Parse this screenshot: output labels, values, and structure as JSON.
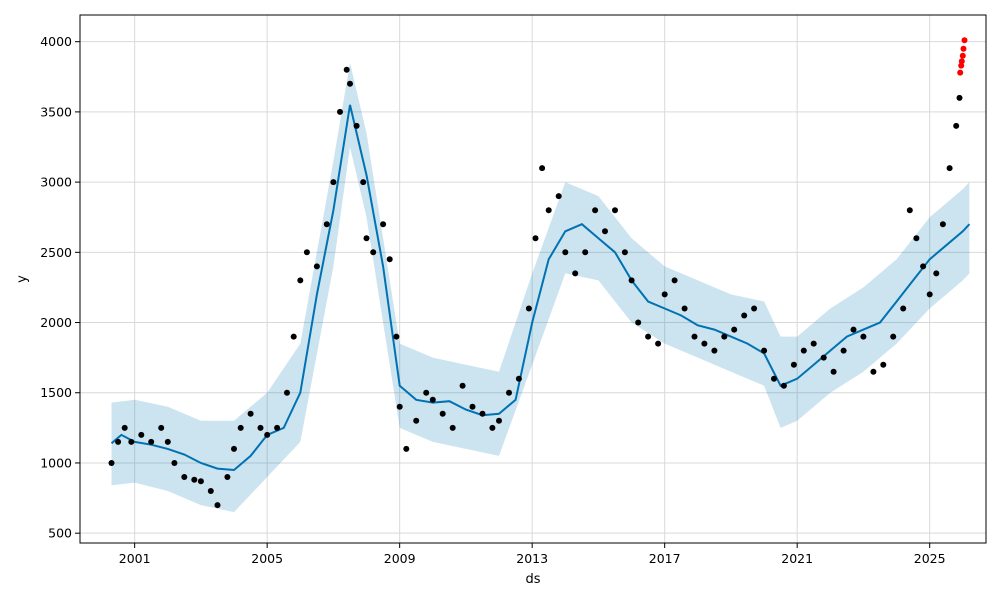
{
  "chart_data": {
    "type": "scatter",
    "title": "",
    "xlabel": "ds",
    "ylabel": "y",
    "xlim": [
      1999.35,
      2026.7
    ],
    "ylim": [
      430,
      4190
    ],
    "grid": true,
    "x_ticks": [
      {
        "value": 2001,
        "label": "2001"
      },
      {
        "value": 2005,
        "label": "2005"
      },
      {
        "value": 2009,
        "label": "2009"
      },
      {
        "value": 2013,
        "label": "2013"
      },
      {
        "value": 2017,
        "label": "2017"
      },
      {
        "value": 2021,
        "label": "2021"
      },
      {
        "value": 2025,
        "label": "2025"
      }
    ],
    "y_ticks": [
      {
        "value": 500,
        "label": "500"
      },
      {
        "value": 1000,
        "label": "1000"
      },
      {
        "value": 1500,
        "label": "1500"
      },
      {
        "value": 2000,
        "label": "2000"
      },
      {
        "value": 2500,
        "label": "2500"
      },
      {
        "value": 3000,
        "label": "3000"
      },
      {
        "value": 3500,
        "label": "3500"
      },
      {
        "value": 4000,
        "label": "4000"
      }
    ],
    "colors": {
      "observed": "#000000",
      "forecast": "#0072B2",
      "interval_fill": "#0072B2",
      "outliers": "#ff0000"
    },
    "forecast": {
      "x": [
        2000.3,
        2000.6,
        2001.0,
        2001.5,
        2002.0,
        2002.5,
        2003.0,
        2003.5,
        2004.0,
        2004.5,
        2005.0,
        2005.5,
        2006.0,
        2006.5,
        2007.0,
        2007.5,
        2008.0,
        2008.5,
        2009.0,
        2009.5,
        2010.0,
        2010.5,
        2011.0,
        2011.5,
        2012.0,
        2012.5,
        2013.0,
        2013.5,
        2014.0,
        2014.5,
        2015.0,
        2015.5,
        2016.0,
        2016.5,
        2017.0,
        2017.5,
        2018.0,
        2018.5,
        2019.0,
        2019.5,
        2020.0,
        2020.5,
        2021.0,
        2021.5,
        2022.0,
        2022.5,
        2023.0,
        2023.5,
        2024.0,
        2024.5,
        2025.0,
        2025.5,
        2026.0,
        2026.2
      ],
      "yhat": [
        1140,
        1200,
        1150,
        1130,
        1100,
        1060,
        1000,
        960,
        950,
        1050,
        1200,
        1250,
        1500,
        2200,
        2800,
        3550,
        3050,
        2400,
        1550,
        1450,
        1430,
        1440,
        1380,
        1340,
        1350,
        1450,
        2000,
        2450,
        2650,
        2700,
        2600,
        2500,
        2300,
        2150,
        2100,
        2050,
        1980,
        1950,
        1900,
        1850,
        1780,
        1550,
        1600,
        1700,
        1800,
        1900,
        1950,
        2000,
        2150,
        2300,
        2450,
        2550,
        2650,
        2700
      ]
    },
    "interval": {
      "x": [
        2000.3,
        2001.0,
        2002.0,
        2003.0,
        2004.0,
        2005.0,
        2006.0,
        2007.0,
        2007.5,
        2008.0,
        2009.0,
        2010.0,
        2011.0,
        2012.0,
        2013.0,
        2014.0,
        2015.0,
        2016.0,
        2017.0,
        2018.0,
        2019.0,
        2020.0,
        2020.5,
        2021.0,
        2022.0,
        2023.0,
        2024.0,
        2025.0,
        2026.0,
        2026.2
      ],
      "upper": [
        1430,
        1450,
        1400,
        1300,
        1300,
        1500,
        1850,
        3150,
        3850,
        3350,
        1850,
        1750,
        1700,
        1650,
        2350,
        3000,
        2900,
        2600,
        2400,
        2300,
        2200,
        2150,
        1900,
        1900,
        2100,
        2250,
        2450,
        2750,
        2950,
        3000
      ],
      "lower": [
        840,
        860,
        800,
        700,
        650,
        900,
        1150,
        2400,
        3250,
        2750,
        1250,
        1150,
        1100,
        1050,
        1700,
        2350,
        2300,
        2000,
        1850,
        1750,
        1650,
        1550,
        1250,
        1300,
        1500,
        1650,
        1850,
        2100,
        2300,
        2350
      ]
    },
    "observed": {
      "x": [
        2000.3,
        2000.5,
        2000.7,
        2000.9,
        2001.2,
        2001.5,
        2001.8,
        2002.0,
        2002.2,
        2002.5,
        2002.8,
        2003.0,
        2003.3,
        2003.5,
        2003.8,
        2004.0,
        2004.2,
        2004.5,
        2004.8,
        2005.0,
        2005.3,
        2005.6,
        2005.8,
        2006.0,
        2006.2,
        2006.5,
        2006.8,
        2007.0,
        2007.2,
        2007.4,
        2007.5,
        2007.7,
        2007.9,
        2008.0,
        2008.2,
        2008.5,
        2008.7,
        2008.9,
        2009.0,
        2009.2,
        2009.5,
        2009.8,
        2010.0,
        2010.3,
        2010.6,
        2010.9,
        2011.2,
        2011.5,
        2011.8,
        2012.0,
        2012.3,
        2012.6,
        2012.9,
        2013.1,
        2013.3,
        2013.5,
        2013.8,
        2014.0,
        2014.3,
        2014.6,
        2014.9,
        2015.2,
        2015.5,
        2015.8,
        2016.0,
        2016.2,
        2016.5,
        2016.8,
        2017.0,
        2017.3,
        2017.6,
        2017.9,
        2018.2,
        2018.5,
        2018.8,
        2019.1,
        2019.4,
        2019.7,
        2020.0,
        2020.3,
        2020.6,
        2020.9,
        2021.2,
        2021.5,
        2021.8,
        2022.1,
        2022.4,
        2022.7,
        2023.0,
        2023.3,
        2023.6,
        2023.9,
        2024.2,
        2024.4,
        2024.6,
        2024.8,
        2025.0,
        2025.2,
        2025.4,
        2025.6,
        2025.8,
        2025.9
      ],
      "y": [
        1000,
        1150,
        1250,
        1150,
        1200,
        1150,
        1250,
        1150,
        1000,
        900,
        880,
        870,
        800,
        700,
        900,
        1100,
        1250,
        1350,
        1250,
        1200,
        1250,
        1500,
        1900,
        2300,
        2500,
        2400,
        2700,
        3000,
        3500,
        3800,
        3700,
        3400,
        3000,
        2600,
        2500,
        2700,
        2450,
        1900,
        1400,
        1100,
        1300,
        1500,
        1450,
        1350,
        1250,
        1550,
        1400,
        1350,
        1250,
        1300,
        1500,
        1600,
        2100,
        2600,
        3100,
        2800,
        2900,
        2500,
        2350,
        2500,
        2800,
        2650,
        2800,
        2500,
        2300,
        2000,
        1900,
        1850,
        2200,
        2300,
        2100,
        1900,
        1850,
        1800,
        1900,
        1950,
        2050,
        2100,
        1800,
        1600,
        1550,
        1700,
        1800,
        1850,
        1750,
        1650,
        1800,
        1950,
        1900,
        1650,
        1700,
        1900,
        2100,
        2800,
        2600,
        2400,
        2200,
        2350,
        2700,
        3100,
        3400,
        3600
      ]
    },
    "outliers": {
      "x": [
        2025.92,
        2025.95,
        2025.97,
        2026.0,
        2026.02,
        2026.05
      ],
      "y": [
        3780,
        3830,
        3860,
        3900,
        3950,
        4010
      ]
    }
  }
}
